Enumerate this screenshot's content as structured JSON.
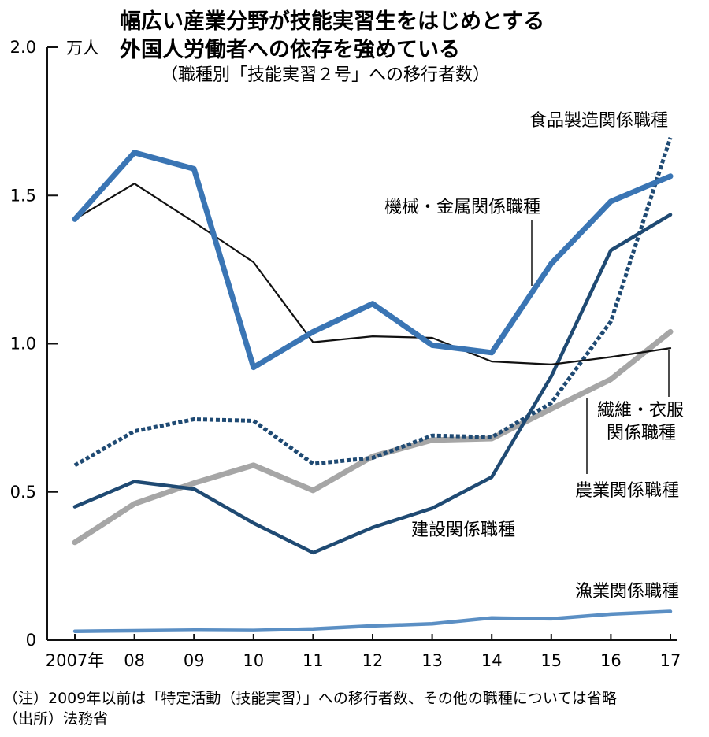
{
  "chart_data": {
    "type": "line",
    "title_lines": [
      "幅広い産業分野が技能実習生をはじめとする",
      "外国人労働者への依存を強めている"
    ],
    "subtitle": "（職種別「技能実習２号」への移行者数）",
    "y_unit": "万人",
    "ylim": [
      0,
      2.0
    ],
    "y_ticks": [
      {
        "value": 0,
        "label": "0"
      },
      {
        "value": 0.5,
        "label": "0.5"
      },
      {
        "value": 1.0,
        "label": "1.0"
      },
      {
        "value": 1.5,
        "label": "1.5"
      },
      {
        "value": 2.0,
        "label": "2.0"
      }
    ],
    "x_tick_labels": [
      "2007年",
      "08",
      "09",
      "10",
      "11",
      "12",
      "13",
      "14",
      "15",
      "16",
      "17"
    ],
    "x": [
      2007,
      2008,
      2009,
      2010,
      2011,
      2012,
      2013,
      2014,
      2015,
      2016,
      2017
    ],
    "grid": false,
    "series": [
      {
        "key": "fishery",
        "name": "漁業関係職種",
        "color": "#5b8fc4",
        "style": "solid-medium",
        "values": [
          0.03,
          0.032,
          0.034,
          0.033,
          0.038,
          0.048,
          0.055,
          0.075,
          0.072,
          0.088,
          0.097
        ]
      },
      {
        "key": "agriculture",
        "name": "農業関係職種",
        "color": "#a6a6a6",
        "style": "solid-thick",
        "values": [
          0.33,
          0.46,
          0.53,
          0.59,
          0.505,
          0.62,
          0.675,
          0.68,
          0.78,
          0.88,
          1.04
        ]
      },
      {
        "key": "construction",
        "name": "建設関係職種",
        "color": "#1f4a73",
        "style": "solid-medium",
        "values": [
          0.45,
          0.535,
          0.51,
          0.395,
          0.295,
          0.38,
          0.445,
          0.55,
          0.89,
          1.315,
          1.435
        ]
      },
      {
        "key": "food",
        "name": "食品製造関係職種",
        "color": "#1f4a73",
        "style": "dotted",
        "values": [
          0.59,
          0.705,
          0.745,
          0.74,
          0.595,
          0.615,
          0.69,
          0.685,
          0.8,
          1.075,
          1.695
        ]
      },
      {
        "key": "textile",
        "name_lines": [
          "繊維・衣服",
          "関係職種"
        ],
        "color": "#111111",
        "style": "solid-thin",
        "values": [
          1.42,
          1.54,
          1.41,
          1.275,
          1.005,
          1.025,
          1.02,
          0.94,
          0.93,
          0.955,
          0.985
        ]
      },
      {
        "key": "machinery",
        "name": "機械・金属関係職種",
        "color": "#3a75b4",
        "style": "solid-thick",
        "values": [
          1.42,
          1.645,
          1.59,
          0.92,
          1.04,
          1.135,
          0.995,
          0.97,
          1.27,
          1.48,
          1.565
        ]
      }
    ],
    "notes": [
      "（注）2009年以前は「特定活動（技能実習）」への移行者数、その他の職種については省略",
      "（出所）法務省"
    ]
  }
}
